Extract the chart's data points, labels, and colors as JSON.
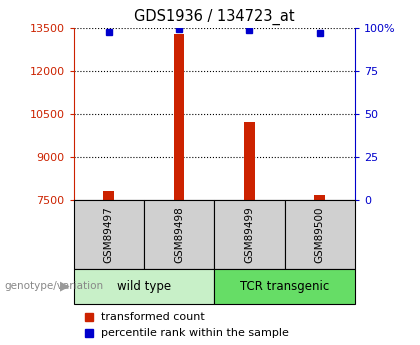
{
  "title": "GDS1936 / 134723_at",
  "samples": [
    "GSM89497",
    "GSM89498",
    "GSM89499",
    "GSM89500"
  ],
  "transformed_counts": [
    7820,
    13280,
    10200,
    7680
  ],
  "percentile_ranks": [
    97.5,
    99.0,
    98.5,
    97.0
  ],
  "ylim_left": [
    7500,
    13500
  ],
  "ylim_right": [
    0,
    100
  ],
  "yticks_left": [
    7500,
    9000,
    10500,
    12000,
    13500
  ],
  "yticks_right": [
    0,
    25,
    50,
    75,
    100
  ],
  "groups": [
    {
      "label": "wild type",
      "samples": [
        0,
        1
      ],
      "color": "#c8f0c8"
    },
    {
      "label": "TCR transgenic",
      "samples": [
        2,
        3
      ],
      "color": "#66dd66"
    }
  ],
  "bar_color": "#cc2200",
  "dot_color": "#0000cc",
  "bar_width": 0.15,
  "plot_bg": "#ffffff",
  "sample_box_color": "#d0d0d0",
  "genotype_label": "genotype/variation",
  "legend_bar": "transformed count",
  "legend_dot": "percentile rank within the sample",
  "title_fontsize": 10.5,
  "axis_color_left": "#cc2200",
  "axis_color_right": "#0000cc",
  "grid_color": "#000000",
  "spine_color_left": "#cc2200",
  "spine_color_right": "#0000cc"
}
